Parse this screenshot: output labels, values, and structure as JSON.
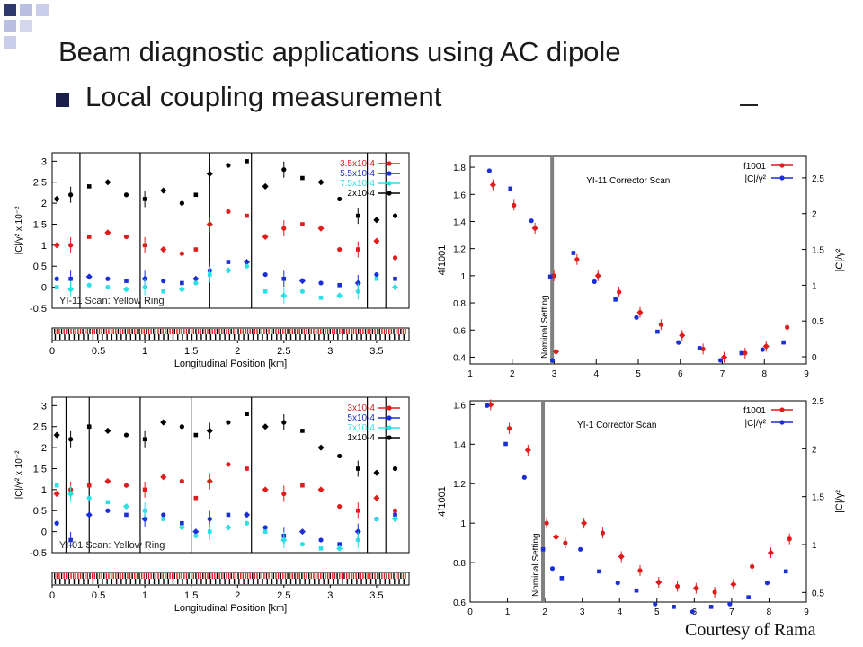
{
  "slide": {
    "title": "Beam diagnostic applications using AC dipole",
    "bullet": "Local coupling measurement",
    "courtesy": "Courtesy of Rama"
  },
  "colors": {
    "deco_dark": "#2e3a6e",
    "deco_light": "#b8bfe0",
    "red": "#e01c1c",
    "blue": "#1a2fd6",
    "cyan": "#2ee0e6",
    "black": "#000000",
    "gray": "#808080"
  },
  "chart_data": [
    {
      "type": "scatter",
      "title": "YI-11 Scan: Yellow Ring",
      "xlabel": "Longitudinal Position [km]",
      "ylabel": "|C|/γ² x 10⁻²",
      "xlim": [
        0,
        3.85
      ],
      "ylim": [
        -0.5,
        3.2
      ],
      "xticks": [
        "0",
        "0.5",
        "1",
        "1.5",
        "2",
        "2.5",
        "3",
        "3.5"
      ],
      "yticks": [
        "-0.5",
        "0",
        "0.5",
        "1",
        "1.5",
        "2",
        "2.5",
        "3"
      ],
      "legend_position": "top-right",
      "legend": [
        "3.5x10-4",
        "5.5x10-4",
        "7.5x10-4",
        "2x10-4"
      ],
      "vlines_x": [
        0.3,
        0.95,
        1.7,
        2.15,
        3.4,
        3.6
      ],
      "series": [
        {
          "name": "3.5x10-4",
          "color": "red",
          "x": [
            0.05,
            0.2,
            0.4,
            0.6,
            0.8,
            1.0,
            1.2,
            1.4,
            1.55,
            1.7,
            1.9,
            2.1,
            2.3,
            2.5,
            2.7,
            2.9,
            3.1,
            3.3,
            3.5,
            3.7
          ],
          "y": [
            1.0,
            1.0,
            1.2,
            1.3,
            1.2,
            1.0,
            0.9,
            0.8,
            0.9,
            1.5,
            1.8,
            1.7,
            1.2,
            1.4,
            1.5,
            1.4,
            0.9,
            0.9,
            1.1,
            0.7
          ]
        },
        {
          "name": "5.5x10-4",
          "color": "blue",
          "x": [
            0.05,
            0.2,
            0.4,
            0.6,
            0.8,
            1.0,
            1.2,
            1.4,
            1.55,
            1.7,
            1.9,
            2.1,
            2.3,
            2.5,
            2.7,
            2.9,
            3.1,
            3.3,
            3.5,
            3.7
          ],
          "y": [
            0.2,
            0.2,
            0.25,
            0.2,
            0.15,
            0.2,
            0.15,
            0.1,
            0.2,
            0.4,
            0.6,
            0.6,
            0.3,
            0.2,
            0.15,
            0.1,
            0.05,
            0.1,
            0.3,
            0.2
          ]
        },
        {
          "name": "7.5x10-4",
          "color": "cyan",
          "x": [
            0.05,
            0.2,
            0.4,
            0.6,
            0.8,
            1.0,
            1.2,
            1.4,
            1.55,
            1.7,
            1.9,
            2.1,
            2.3,
            2.5,
            2.7,
            2.9,
            3.1,
            3.3,
            3.5,
            3.7
          ],
          "y": [
            0.0,
            -0.05,
            0.05,
            0.0,
            -0.05,
            0.0,
            -0.1,
            -0.05,
            0.1,
            0.3,
            0.4,
            0.5,
            -0.1,
            -0.2,
            -0.1,
            -0.25,
            -0.2,
            -0.1,
            0.2,
            0.0
          ]
        },
        {
          "name": "2x10-4",
          "color": "black",
          "x": [
            0.05,
            0.2,
            0.4,
            0.6,
            0.8,
            1.0,
            1.2,
            1.4,
            1.55,
            1.7,
            1.9,
            2.1,
            2.3,
            2.5,
            2.7,
            2.9,
            3.1,
            3.3,
            3.5,
            3.7
          ],
          "y": [
            2.1,
            2.2,
            2.4,
            2.5,
            2.2,
            2.1,
            2.3,
            2.0,
            2.2,
            2.7,
            2.9,
            3.0,
            2.4,
            2.8,
            2.6,
            2.5,
            2.1,
            1.7,
            1.6,
            1.7
          ]
        }
      ]
    },
    {
      "type": "scatter",
      "title": "YI-01 Scan: Yellow Ring",
      "xlabel": "Longitudinal Position [km]",
      "ylabel": "|C|/γ² x 10⁻²",
      "xlim": [
        0,
        3.85
      ],
      "ylim": [
        -0.5,
        3.2
      ],
      "xticks": [
        "0",
        "0.5",
        "1",
        "1.5",
        "2",
        "2.5",
        "3",
        "3.5"
      ],
      "yticks": [
        "-0.5",
        "0",
        "0.5",
        "1",
        "1.5",
        "2",
        "2.5",
        "3"
      ],
      "legend_position": "top-right",
      "legend": [
        "3x10-4",
        "5x10-4",
        "7x10-4",
        "1x10-4"
      ],
      "vlines_x": [
        0.15,
        0.4,
        0.95,
        1.5,
        2.15,
        3.4,
        3.6
      ],
      "series": [
        {
          "name": "3x10-4",
          "color": "red",
          "x": [
            0.05,
            0.2,
            0.4,
            0.6,
            0.8,
            1.0,
            1.2,
            1.4,
            1.55,
            1.7,
            1.9,
            2.1,
            2.3,
            2.5,
            2.7,
            2.9,
            3.1,
            3.3,
            3.5,
            3.7
          ],
          "y": [
            0.9,
            1.0,
            1.1,
            1.2,
            1.1,
            1.0,
            1.3,
            1.2,
            0.8,
            1.2,
            1.6,
            1.5,
            1.0,
            0.9,
            1.1,
            1.0,
            0.6,
            0.5,
            0.8,
            0.5
          ]
        },
        {
          "name": "5x10-4",
          "color": "blue",
          "x": [
            0.05,
            0.2,
            0.4,
            0.6,
            0.8,
            1.0,
            1.2,
            1.4,
            1.55,
            1.7,
            1.9,
            2.1,
            2.3,
            2.5,
            2.7,
            2.9,
            3.1,
            3.3,
            3.5,
            3.7
          ],
          "y": [
            0.2,
            -0.2,
            0.4,
            0.5,
            0.4,
            0.3,
            0.4,
            0.2,
            0.0,
            0.3,
            0.4,
            0.4,
            0.1,
            -0.1,
            0.0,
            -0.2,
            -0.3,
            0.0,
            0.3,
            0.4
          ]
        },
        {
          "name": "7x10-4",
          "color": "cyan",
          "x": [
            0.05,
            0.2,
            0.4,
            0.6,
            0.8,
            1.0,
            1.2,
            1.4,
            1.55,
            1.7,
            1.9,
            2.1,
            2.3,
            2.5,
            2.7,
            2.9,
            3.1,
            3.3,
            3.5,
            3.7
          ],
          "y": [
            1.1,
            0.9,
            0.8,
            0.7,
            0.6,
            0.5,
            0.3,
            0.1,
            -0.1,
            0.0,
            0.1,
            0.2,
            0.0,
            -0.2,
            -0.3,
            -0.4,
            -0.4,
            -0.2,
            0.3,
            0.3
          ]
        },
        {
          "name": "1x10-4",
          "color": "black",
          "x": [
            0.05,
            0.2,
            0.4,
            0.6,
            0.8,
            1.0,
            1.2,
            1.4,
            1.55,
            1.7,
            1.9,
            2.1,
            2.3,
            2.5,
            2.7,
            2.9,
            3.1,
            3.3,
            3.5,
            3.7
          ],
          "y": [
            2.3,
            2.2,
            2.5,
            2.4,
            2.3,
            2.2,
            2.6,
            2.5,
            2.3,
            2.4,
            2.6,
            2.8,
            2.5,
            2.6,
            2.4,
            2.0,
            1.8,
            1.5,
            1.4,
            1.5
          ]
        }
      ]
    },
    {
      "type": "scatter",
      "title": "YI-11 Corrector Scan",
      "ylabel": "4f1001",
      "ylabel_right": "|C|/γ²",
      "xlim": [
        1,
        9
      ],
      "ylim": [
        0.35,
        1.88
      ],
      "ylim_right": [
        -0.1,
        2.8
      ],
      "xticks": [
        "1",
        "2",
        "3",
        "4",
        "5",
        "6",
        "7",
        "8",
        "9"
      ],
      "yticks": [
        "0.4",
        "0.6",
        "0.8",
        "1",
        "1.2",
        "1.4",
        "1.6",
        "1.8"
      ],
      "yticks_right": [
        "0",
        "0.5",
        "1",
        "1.5",
        "2",
        "2.5"
      ],
      "legend_position": "top-right",
      "legend": [
        "f1001",
        "|C|/γ²"
      ],
      "annotation": "Nominal Setting",
      "nominal_x": 2.95,
      "series": [
        {
          "name": "f1001",
          "color": "red",
          "x": [
            1.5,
            2.0,
            2.5,
            2.95,
            3.0,
            3.5,
            4.0,
            4.5,
            5.0,
            5.5,
            6.0,
            6.5,
            7.0,
            7.5,
            8.0,
            8.5
          ],
          "y": [
            1.67,
            1.52,
            1.35,
            1.0,
            0.44,
            1.12,
            1.0,
            0.88,
            0.73,
            0.64,
            0.56,
            0.46,
            0.4,
            0.43,
            0.48,
            0.62
          ]
        },
        {
          "name": "|C|/γ²",
          "color": "blue",
          "x": [
            1.5,
            2.0,
            2.5,
            2.95,
            3.0,
            3.5,
            4.0,
            4.5,
            5.0,
            5.5,
            6.0,
            6.5,
            7.0,
            7.5,
            8.0,
            8.5
          ],
          "y": [
            2.6,
            2.35,
            1.9,
            1.12,
            -0.05,
            1.45,
            1.05,
            0.8,
            0.55,
            0.35,
            0.2,
            0.12,
            -0.05,
            0.05,
            0.1,
            0.2
          ]
        }
      ]
    },
    {
      "type": "scatter",
      "title": "YI-1 Corrector Scan",
      "ylabel": "4f1001",
      "ylabel_right": "|C|/γ²",
      "xlim": [
        0,
        9
      ],
      "ylim": [
        0.6,
        1.62
      ],
      "ylim_right": [
        0.4,
        2.5
      ],
      "xticks": [
        "0",
        "1",
        "2",
        "3",
        "4",
        "5",
        "6",
        "7",
        "8",
        "9"
      ],
      "yticks": [
        "0.6",
        "0.8",
        "1",
        "1.2",
        "1.4",
        "1.6"
      ],
      "yticks_right": [
        "0.5",
        "1",
        "1.5",
        "2",
        "2.5"
      ],
      "legend_position": "top-right",
      "legend": [
        "f1001",
        "|C|/γ²"
      ],
      "annotation": "Nominal Setting",
      "nominal_x": 1.95,
      "series": [
        {
          "name": "f1001",
          "color": "red",
          "x": [
            0.5,
            1.0,
            1.5,
            2.0,
            2.25,
            2.5,
            3.0,
            3.5,
            4.0,
            4.5,
            5.0,
            5.5,
            6.0,
            6.5,
            7.0,
            7.5,
            8.0,
            8.5
          ],
          "y": [
            1.6,
            1.48,
            1.37,
            1.0,
            0.93,
            0.9,
            1.0,
            0.95,
            0.83,
            0.76,
            0.7,
            0.68,
            0.67,
            0.65,
            0.69,
            0.78,
            0.85,
            0.92
          ]
        },
        {
          "name": "|C|/γ²",
          "color": "blue",
          "x": [
            0.5,
            1.0,
            1.5,
            2.0,
            2.25,
            2.5,
            3.0,
            3.5,
            4.0,
            4.5,
            5.0,
            5.5,
            6.0,
            6.5,
            7.0,
            7.5,
            8.0,
            8.5
          ],
          "y": [
            2.45,
            2.05,
            1.7,
            0.95,
            0.75,
            0.65,
            0.95,
            0.72,
            0.6,
            0.52,
            0.38,
            0.35,
            0.3,
            0.35,
            0.38,
            0.45,
            0.6,
            0.72
          ]
        }
      ]
    }
  ]
}
